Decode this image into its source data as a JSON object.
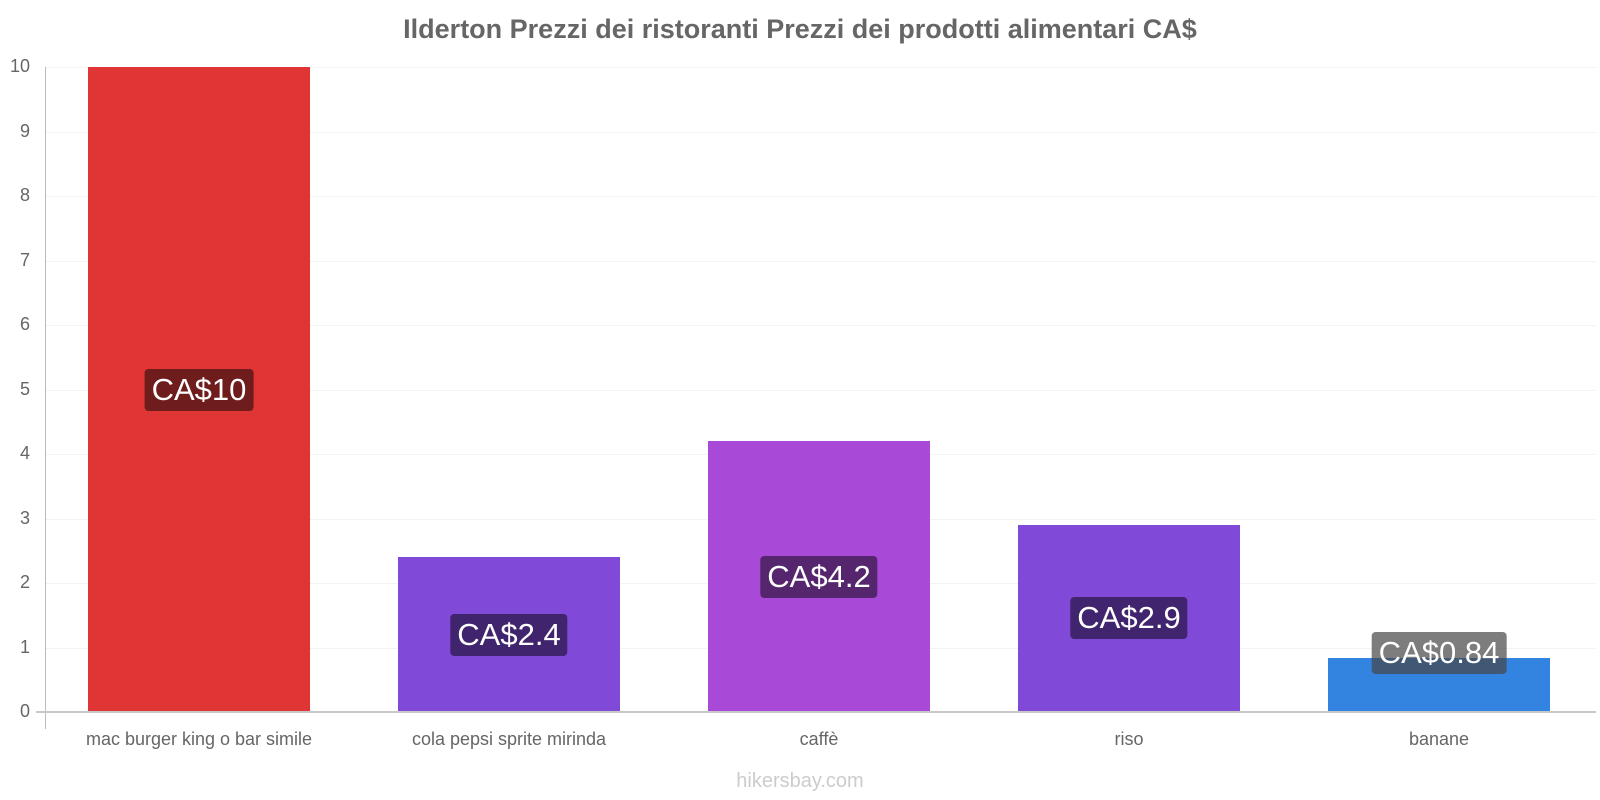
{
  "chart_data": {
    "type": "bar",
    "title": "Ilderton Prezzi dei ristoranti Prezzi dei prodotti alimentari CA$",
    "xlabel": "",
    "ylabel": "",
    "ylim": [
      0,
      10
    ],
    "yticks": [
      "0",
      "1",
      "2",
      "3",
      "4",
      "5",
      "6",
      "7",
      "8",
      "9",
      "10"
    ],
    "grid": true,
    "categories": [
      "mac burger king o bar simile",
      "cola pepsi sprite mirinda",
      "caffè",
      "riso",
      "banane"
    ],
    "values": [
      10,
      2.4,
      4.2,
      2.9,
      0.84
    ],
    "data_labels": [
      "CA$10",
      "CA$2.4",
      "CA$4.2",
      "CA$2.9",
      "CA$0.84"
    ],
    "colors": [
      "#e03535",
      "#8049d8",
      "#a849d8",
      "#8049d8",
      "#3384e0"
    ],
    "label_bg_colors": [
      "#6e1c1c",
      "#40246e",
      "#55266e",
      "#40246e",
      "rgba(70,70,70,0.7)"
    ]
  },
  "footer": "hikersbay.com"
}
